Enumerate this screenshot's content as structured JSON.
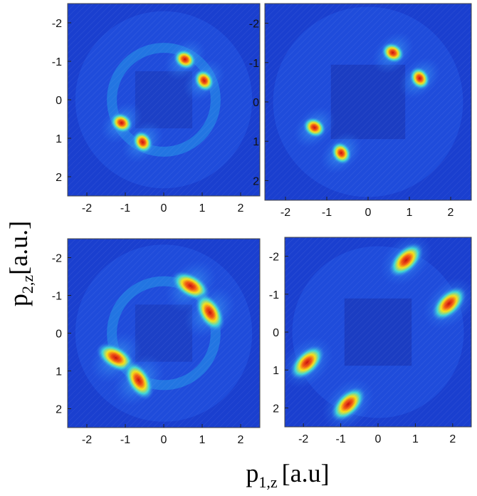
{
  "figure": {
    "ylabel_main": "p",
    "ylabel_sub": "2,z",
    "ylabel_unit": "[a.u.]",
    "xlabel_main": "p",
    "xlabel_sub": "1,z",
    "xlabel_unit": "[a.u]"
  },
  "colors": {
    "background": "#1a3fcf",
    "low": "#2457e6",
    "mid": "#29c4f0",
    "high": "#f2e21a",
    "peak": "#d41a12"
  },
  "chart_data": [
    {
      "type": "heatmap",
      "panel": "top-left",
      "xlim": [
        -2.5,
        2.5
      ],
      "ylim": [
        -2.5,
        2.5
      ],
      "xticks": [
        -2,
        -1,
        0,
        1,
        2
      ],
      "yticks": [
        -2,
        -1,
        0,
        1,
        2
      ],
      "xtick_labels": [
        "-2",
        "-1",
        "0",
        "1",
        "2"
      ],
      "ytick_labels": [
        "2",
        "1",
        "0",
        "-1",
        "-2"
      ],
      "ring_radius": 1.35,
      "peaks": [
        {
          "x": 0.55,
          "y": 1.05,
          "intensity": 1.0
        },
        {
          "x": 1.05,
          "y": 0.5,
          "intensity": 1.0
        },
        {
          "x": -1.1,
          "y": -0.6,
          "intensity": 1.0
        },
        {
          "x": -0.55,
          "y": -1.1,
          "intensity": 1.0
        }
      ]
    },
    {
      "type": "heatmap",
      "panel": "top-right",
      "xlim": [
        -2.5,
        2.5
      ],
      "ylim": [
        -2.5,
        2.5
      ],
      "xticks": [
        -2,
        -1,
        0,
        1,
        2
      ],
      "yticks": [
        -2,
        -1,
        0,
        1,
        2
      ],
      "xtick_labels": [
        "-2",
        "-1",
        "0",
        "1",
        "2"
      ],
      "ytick_labels": [
        "2",
        "1",
        "0",
        "-1",
        "-2"
      ],
      "peaks": [
        {
          "x": 0.6,
          "y": 1.25,
          "intensity": 0.95
        },
        {
          "x": 1.25,
          "y": 0.6,
          "intensity": 0.95
        },
        {
          "x": -1.3,
          "y": -0.65,
          "intensity": 0.9
        },
        {
          "x": -0.65,
          "y": -1.3,
          "intensity": 0.9
        }
      ]
    },
    {
      "type": "heatmap",
      "panel": "bottom-left",
      "xlim": [
        -2.5,
        2.5
      ],
      "ylim": [
        -2.5,
        2.5
      ],
      "xticks": [
        -2,
        -1,
        0,
        1,
        2
      ],
      "yticks": [
        -2,
        -1,
        0,
        1,
        2
      ],
      "xtick_labels": [
        "-2",
        "-1",
        "0",
        "1",
        "2"
      ],
      "ytick_labels": [
        "2",
        "1",
        "0",
        "-1",
        "-2"
      ],
      "ring_radius": 1.35,
      "peaks": [
        {
          "x": 0.7,
          "y": 1.25,
          "intensity": 1.0
        },
        {
          "x": 1.2,
          "y": 0.55,
          "intensity": 1.0
        },
        {
          "x": -1.25,
          "y": -0.65,
          "intensity": 1.0
        },
        {
          "x": -0.65,
          "y": -1.25,
          "intensity": 1.0
        }
      ]
    },
    {
      "type": "heatmap",
      "panel": "bottom-right",
      "xlim": [
        -2.5,
        2.5
      ],
      "ylim": [
        -2.5,
        2.5
      ],
      "xticks": [
        -2,
        -1,
        0,
        1,
        2
      ],
      "yticks": [
        -2,
        -1,
        0,
        1,
        2
      ],
      "xtick_labels": [
        "-2",
        "-1",
        "0",
        "1",
        "2"
      ],
      "ytick_labels": [
        "2",
        "1",
        "0",
        "-1",
        "-2"
      ],
      "peaks": [
        {
          "x": 0.75,
          "y": 1.9,
          "intensity": 1.0
        },
        {
          "x": 1.9,
          "y": 0.75,
          "intensity": 1.0
        },
        {
          "x": -1.9,
          "y": -0.8,
          "intensity": 1.0
        },
        {
          "x": -0.8,
          "y": -1.9,
          "intensity": 1.0
        }
      ]
    }
  ]
}
